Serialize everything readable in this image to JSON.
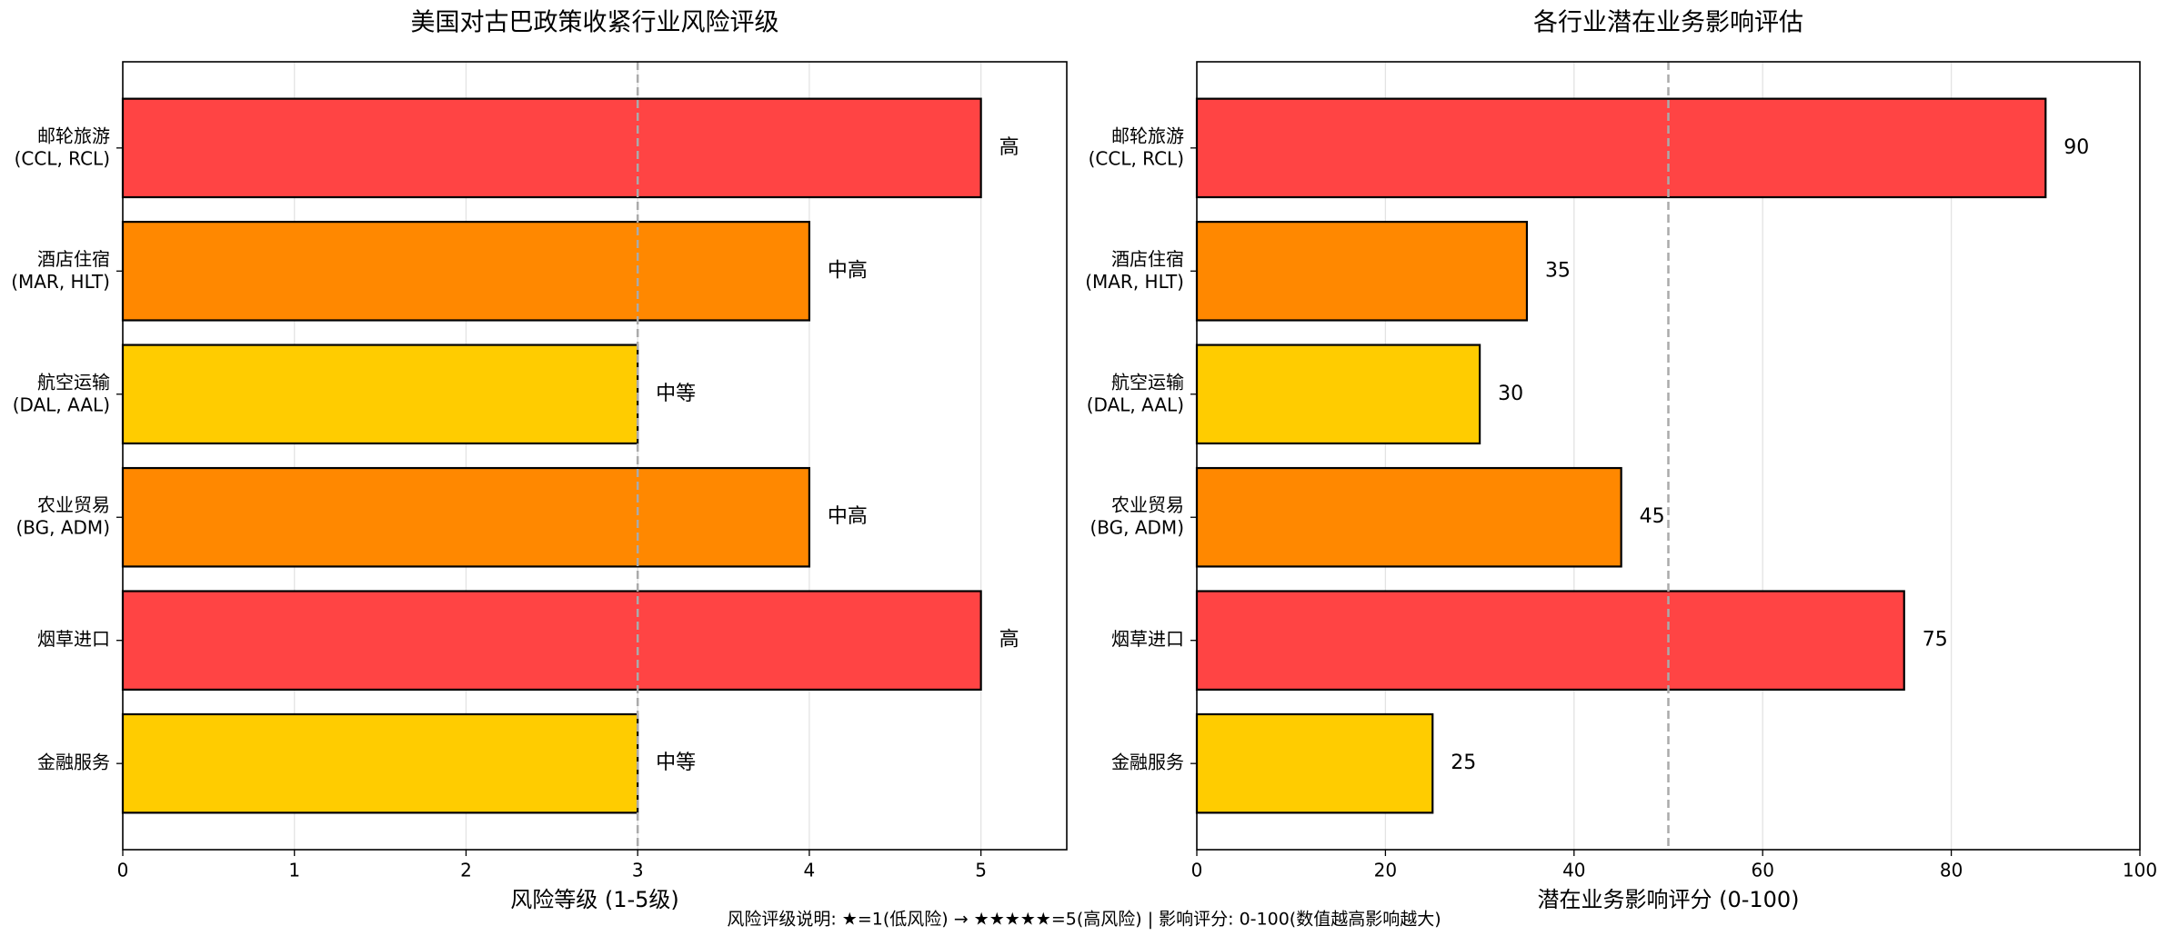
{
  "chart_data": [
    {
      "type": "barh",
      "title": "美国对古巴政策收紧行业风险评级",
      "categories": [
        "邮轮旅游\n(CCL, RCL)",
        "酒店住宿\n(MAR, HLT)",
        "航空运输\n(DAL, AAL)",
        "农业贸易\n(BG, ADM)",
        "烟草进口",
        "金融服务"
      ],
      "values": [
        5,
        4,
        3,
        4,
        5,
        3
      ],
      "value_labels": [
        "高",
        "中高",
        "中等",
        "中高",
        "高",
        "中等"
      ],
      "colors": [
        "#ff4444",
        "#ff8800",
        "#ffcc00",
        "#ff8800",
        "#ff4444",
        "#ffcc00"
      ],
      "xlabel": "风险等级 (1-5级)",
      "xlim": [
        0,
        5.5
      ],
      "xticks": [
        0,
        1,
        2,
        3,
        4,
        5
      ],
      "reference_line": 3,
      "grid": true
    },
    {
      "type": "barh",
      "title": "各行业潜在业务影响评估",
      "categories": [
        "邮轮旅游\n(CCL, RCL)",
        "酒店住宿\n(MAR, HLT)",
        "航空运输\n(DAL, AAL)",
        "农业贸易\n(BG, ADM)",
        "烟草进口",
        "金融服务"
      ],
      "values": [
        90,
        35,
        30,
        45,
        75,
        25
      ],
      "colors": [
        "#ff4444",
        "#ff8800",
        "#ffcc00",
        "#ff8800",
        "#ff4444",
        "#ffcc00"
      ],
      "xlabel": "潜在业务影响评分 (0-100)",
      "xlim": [
        0,
        100
      ],
      "xticks": [
        0,
        20,
        40,
        60,
        80,
        100
      ],
      "reference_line": 50,
      "grid": true
    }
  ],
  "footnote": "风险评级说明: ★=1(低风险) → ★★★★★=5(高风险) | 影响评分: 0-100(数值越高影响越大)"
}
